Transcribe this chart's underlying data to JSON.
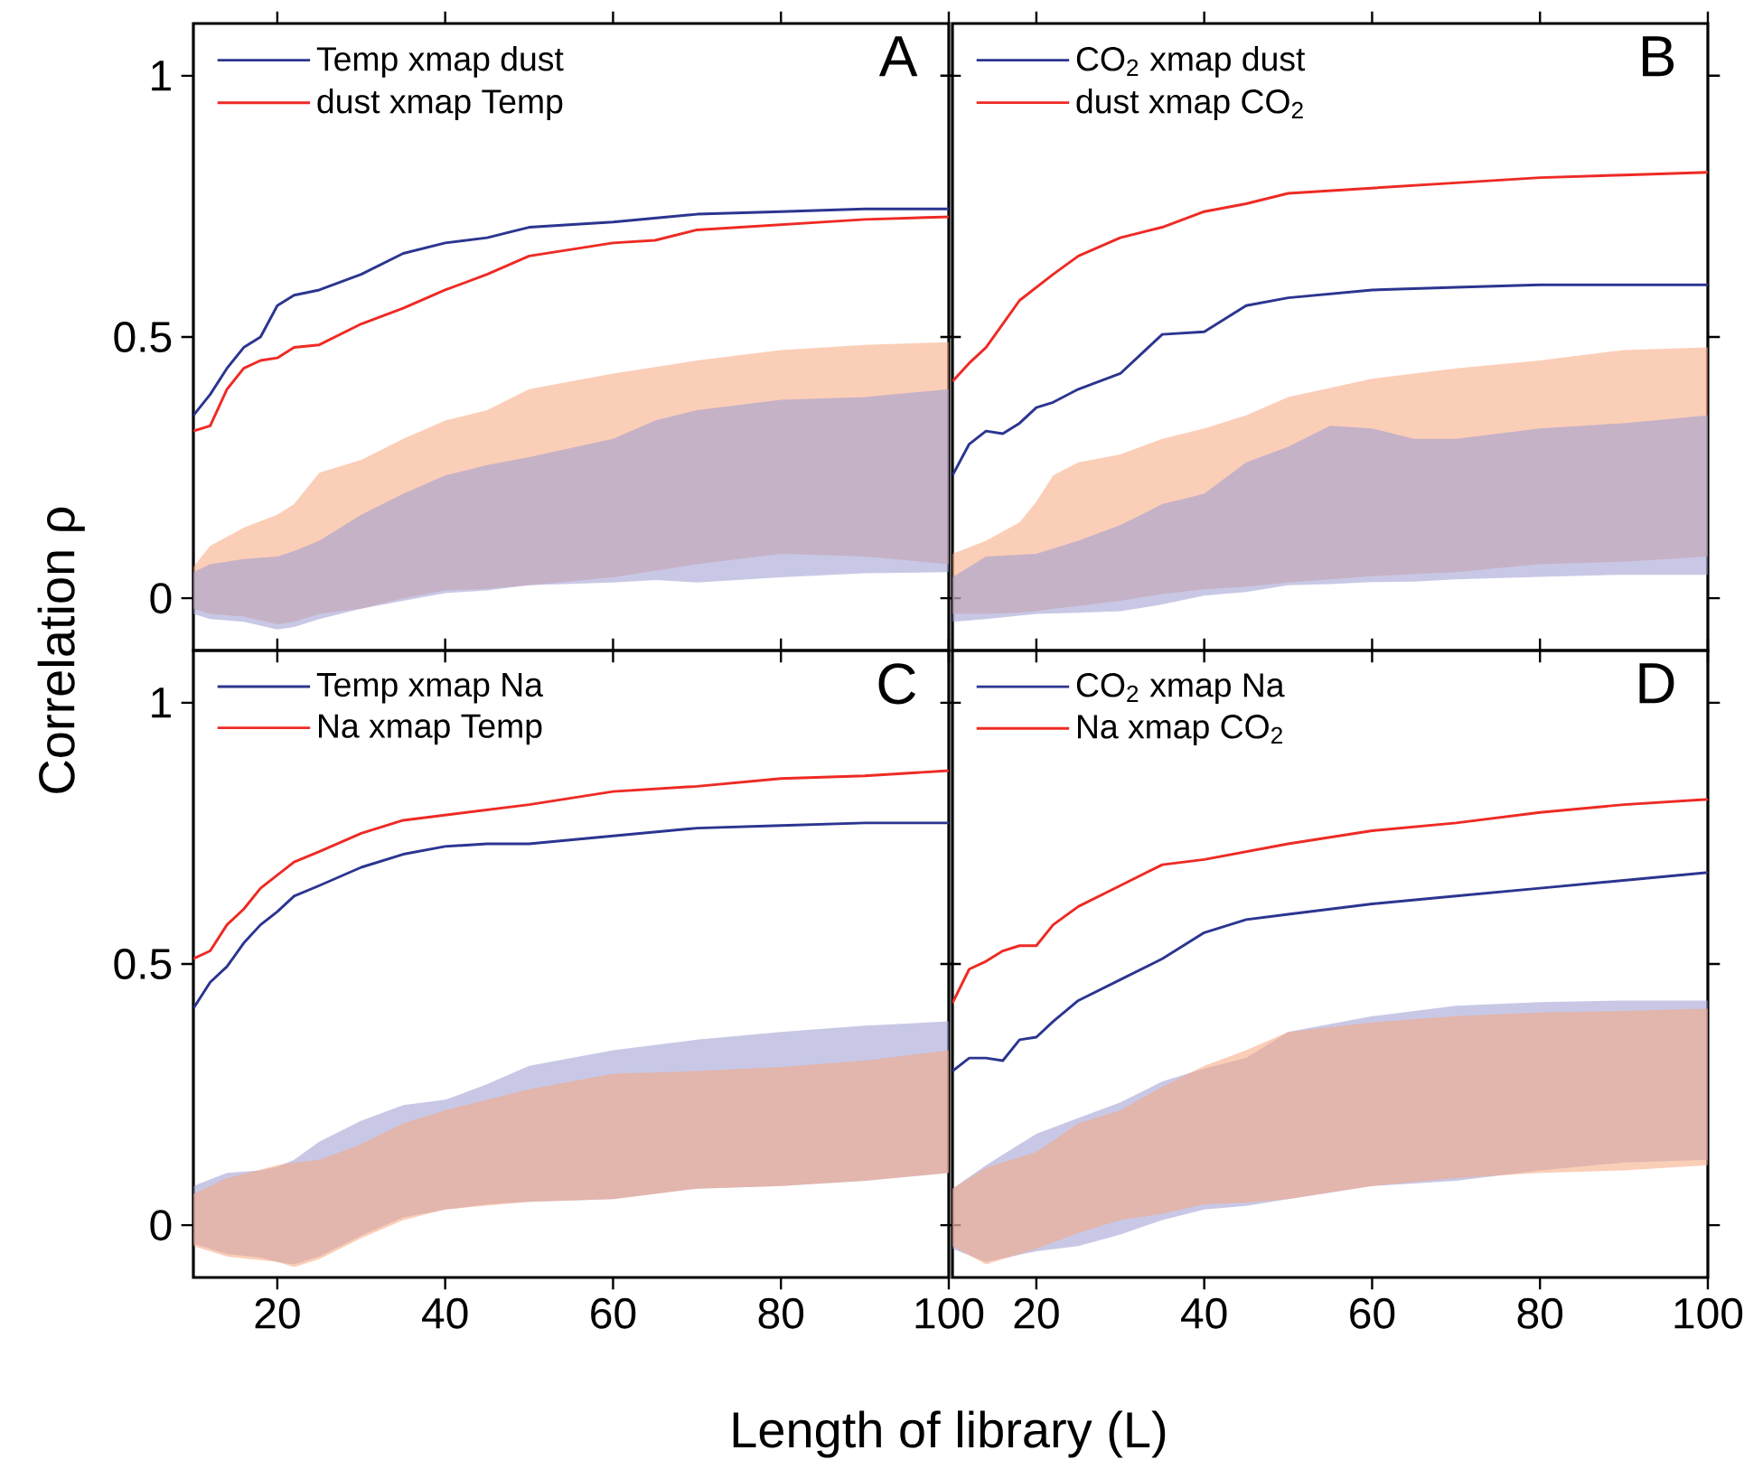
{
  "chart_data": [
    {
      "type": "line",
      "title": "A",
      "ylabel": "Correlation ρ",
      "xlim": [
        10,
        100
      ],
      "ylim": [
        -0.1,
        1.1
      ],
      "xticks": [
        20,
        40,
        60,
        80,
        100
      ],
      "yticks": [
        0,
        0.5,
        1
      ],
      "tick_labels": "y",
      "legend": "top left",
      "series": [
        {
          "color": "#f7a57e",
          "x": [
            10,
            12,
            16,
            20,
            22,
            25,
            30,
            35,
            40,
            45,
            50,
            60,
            70,
            80,
            90,
            100
          ],
          "values": [
            null,
            null,
            null,
            null,
            null,
            null,
            null,
            null,
            null,
            null,
            null,
            null,
            null,
            null,
            null,
            null
          ],
          "upper": [
            0.06,
            0.1,
            0.135,
            0.16,
            0.18,
            0.24,
            0.265,
            0.305,
            0.34,
            0.36,
            0.4,
            0.43,
            0.455,
            0.475,
            0.485,
            0.49
          ],
          "lower": [
            -0.02,
            -0.03,
            -0.035,
            -0.05,
            -0.045,
            -0.03,
            -0.02,
            0.0,
            0.015,
            0.018,
            0.025,
            0.04,
            0.065,
            0.085,
            0.08,
            0.065
          ]
        },
        {
          "color": "#9a9ad2",
          "x": [
            10,
            12,
            16,
            20,
            22,
            25,
            30,
            35,
            40,
            45,
            50,
            60,
            65,
            70,
            80,
            90,
            100
          ],
          "values": [
            null,
            null,
            null,
            null,
            null,
            null,
            null,
            null,
            null,
            null,
            null,
            null,
            null,
            null,
            null,
            null,
            null
          ],
          "upper": [
            0.05,
            0.065,
            0.075,
            0.08,
            0.09,
            0.11,
            0.16,
            0.2,
            0.235,
            0.255,
            0.27,
            0.305,
            0.34,
            0.36,
            0.38,
            0.385,
            0.4
          ],
          "lower": [
            -0.03,
            -0.04,
            -0.045,
            -0.06,
            -0.055,
            -0.04,
            -0.02,
            -0.005,
            0.01,
            0.015,
            0.025,
            0.03,
            0.035,
            0.03,
            0.04,
            0.048,
            0.05
          ]
        },
        {
          "type": "line",
          "name": "Temp xmap dust",
          "color": "#2b3590",
          "x": [
            10,
            12,
            14,
            16,
            18,
            20,
            22,
            25,
            30,
            35,
            40,
            45,
            50,
            60,
            70,
            80,
            90,
            100
          ],
          "values": [
            0.35,
            0.39,
            0.44,
            0.48,
            0.5,
            0.56,
            0.58,
            0.59,
            0.62,
            0.66,
            0.68,
            0.69,
            0.71,
            0.72,
            0.735,
            0.74,
            0.745,
            0.745
          ]
        },
        {
          "type": "line",
          "name": "dust xmap Temp",
          "color": "#ee2a24",
          "x": [
            10,
            12,
            14,
            16,
            18,
            20,
            22,
            25,
            30,
            35,
            40,
            45,
            50,
            60,
            65,
            70,
            80,
            90,
            100
          ],
          "values": [
            0.32,
            0.33,
            0.4,
            0.44,
            0.455,
            0.46,
            0.48,
            0.485,
            0.525,
            0.555,
            0.59,
            0.62,
            0.655,
            0.68,
            0.685,
            0.705,
            0.715,
            0.725,
            0.73
          ]
        }
      ]
    },
    {
      "type": "line",
      "title": "B",
      "xlim": [
        10,
        100
      ],
      "ylim": [
        -0.1,
        1.1
      ],
      "xticks": [
        20,
        40,
        60,
        80,
        100
      ],
      "yticks": [
        0,
        0.5,
        1
      ],
      "tick_labels": false,
      "legend": "top left",
      "series": [
        {
          "color": "#f7a57e",
          "x": [
            10,
            14,
            18,
            20,
            22,
            25,
            30,
            35,
            40,
            45,
            50,
            60,
            70,
            80,
            90,
            100
          ],
          "values": [
            null,
            null,
            null,
            null,
            null,
            null,
            null,
            null,
            null,
            null,
            null,
            null,
            null,
            null,
            null,
            null
          ],
          "upper": [
            0.085,
            0.11,
            0.145,
            0.185,
            0.235,
            0.26,
            0.275,
            0.305,
            0.325,
            0.35,
            0.385,
            0.42,
            0.44,
            0.455,
            0.475,
            0.48
          ],
          "lower": [
            -0.03,
            -0.03,
            -0.028,
            -0.025,
            -0.02,
            -0.015,
            -0.005,
            0.008,
            0.017,
            0.022,
            0.03,
            0.042,
            0.05,
            0.065,
            0.07,
            0.08
          ]
        },
        {
          "color": "#9a9ad2",
          "x": [
            10,
            14,
            20,
            25,
            30,
            35,
            40,
            45,
            50,
            55,
            60,
            65,
            70,
            80,
            90,
            100
          ],
          "values": [
            null,
            null,
            null,
            null,
            null,
            null,
            null,
            null,
            null,
            null,
            null,
            null,
            null,
            null,
            null,
            null
          ],
          "upper": [
            0.04,
            0.08,
            0.085,
            0.11,
            0.14,
            0.18,
            0.2,
            0.26,
            0.29,
            0.33,
            0.325,
            0.305,
            0.305,
            0.325,
            0.335,
            0.35
          ],
          "lower": [
            -0.045,
            -0.04,
            -0.03,
            -0.028,
            -0.025,
            -0.012,
            0.005,
            0.012,
            0.025,
            0.027,
            0.031,
            0.032,
            0.036,
            0.041,
            0.045,
            0.045
          ]
        },
        {
          "type": "line",
          "name": "CO$_{2}$ xmap dust",
          "color": "#2b3590",
          "x": [
            10,
            12,
            14,
            16,
            18,
            20,
            22,
            25,
            30,
            35,
            40,
            45,
            50,
            60,
            70,
            80,
            90,
            100
          ],
          "values": [
            0.235,
            0.295,
            0.32,
            0.315,
            0.335,
            0.365,
            0.375,
            0.4,
            0.43,
            0.505,
            0.51,
            0.56,
            0.575,
            0.59,
            0.595,
            0.6,
            0.6,
            0.6
          ]
        },
        {
          "type": "line",
          "name": "dust xmap CO$_{2}$",
          "color": "#ee2a24",
          "x": [
            10,
            12,
            14,
            16,
            18,
            20,
            22,
            25,
            30,
            35,
            40,
            45,
            50,
            60,
            70,
            80,
            90,
            100
          ],
          "values": [
            0.415,
            0.45,
            0.48,
            0.525,
            0.57,
            0.595,
            0.62,
            0.655,
            0.69,
            0.71,
            0.74,
            0.755,
            0.775,
            0.785,
            0.795,
            0.805,
            0.81,
            0.815
          ]
        }
      ]
    },
    {
      "type": "line",
      "title": "C",
      "xlabel": "Length of library (L)",
      "xlim": [
        10,
        100
      ],
      "ylim": [
        -0.1,
        1.1
      ],
      "xticks": [
        20,
        40,
        60,
        80,
        100
      ],
      "yticks": [
        0,
        0.5,
        1
      ],
      "legend": "top left",
      "series": [
        {
          "color": "#9a9ad2",
          "x": [
            10,
            14,
            18,
            20,
            22,
            25,
            30,
            35,
            40,
            45,
            50,
            60,
            70,
            80,
            90,
            100
          ],
          "values": [
            null,
            null,
            null,
            null,
            null,
            null,
            null,
            null,
            null,
            null,
            null,
            null,
            null,
            null,
            null,
            null
          ],
          "upper": [
            0.075,
            0.1,
            0.105,
            0.112,
            0.125,
            0.16,
            0.2,
            0.23,
            0.24,
            0.27,
            0.305,
            0.335,
            0.355,
            0.37,
            0.382,
            0.39
          ],
          "lower": [
            -0.035,
            -0.055,
            -0.062,
            -0.07,
            -0.075,
            -0.06,
            -0.02,
            0.015,
            0.03,
            0.04,
            0.045,
            0.05,
            0.07,
            0.075,
            0.085,
            0.1
          ]
        },
        {
          "color": "#f7a57e",
          "x": [
            10,
            14,
            20,
            22,
            25,
            30,
            35,
            40,
            50,
            60,
            70,
            80,
            90,
            100
          ],
          "values": [
            null,
            null,
            null,
            null,
            null,
            null,
            null,
            null,
            null,
            null,
            null,
            null,
            null,
            null
          ],
          "upper": [
            0.06,
            0.09,
            0.115,
            0.12,
            0.125,
            0.155,
            0.195,
            0.22,
            0.26,
            0.29,
            0.295,
            0.303,
            0.315,
            0.335
          ],
          "lower": [
            -0.04,
            -0.06,
            -0.07,
            -0.08,
            -0.065,
            -0.025,
            0.01,
            0.03,
            0.045,
            0.05,
            0.07,
            0.075,
            0.085,
            0.1
          ]
        },
        {
          "type": "line",
          "name": "Temp xmap Na",
          "color": "#2b3590",
          "x": [
            10,
            12,
            14,
            16,
            18,
            20,
            22,
            25,
            30,
            35,
            40,
            45,
            50,
            60,
            70,
            80,
            90,
            100
          ],
          "values": [
            0.415,
            0.465,
            0.495,
            0.54,
            0.575,
            0.6,
            0.63,
            0.65,
            0.685,
            0.71,
            0.725,
            0.73,
            0.73,
            0.745,
            0.76,
            0.765,
            0.77,
            0.77
          ]
        },
        {
          "type": "line",
          "name": "Na xmap Temp",
          "color": "#ee2a24",
          "x": [
            10,
            12,
            14,
            16,
            18,
            20,
            22,
            25,
            30,
            35,
            40,
            45,
            50,
            60,
            70,
            80,
            90,
            100
          ],
          "values": [
            0.51,
            0.525,
            0.575,
            0.605,
            0.645,
            0.67,
            0.695,
            0.715,
            0.75,
            0.775,
            0.785,
            0.795,
            0.805,
            0.83,
            0.84,
            0.855,
            0.86,
            0.87
          ]
        }
      ]
    },
    {
      "type": "line",
      "title": "D",
      "xlim": [
        10,
        100
      ],
      "ylim": [
        -0.1,
        1.1
      ],
      "xticks": [
        20,
        40,
        60,
        80,
        100
      ],
      "yticks": [
        0,
        0.5,
        1
      ],
      "tick_labels": "x",
      "legend": "top left",
      "series": [
        {
          "color": "#9a9ad2",
          "x": [
            10,
            14,
            20,
            25,
            30,
            35,
            40,
            45,
            50,
            60,
            70,
            80,
            90,
            100
          ],
          "values": [
            null,
            null,
            null,
            null,
            null,
            null,
            null,
            null,
            null,
            null,
            null,
            null,
            null,
            null
          ],
          "upper": [
            0.07,
            0.115,
            0.175,
            0.205,
            0.235,
            0.275,
            0.3,
            0.32,
            0.37,
            0.4,
            0.42,
            0.427,
            0.43,
            0.43
          ],
          "lower": [
            -0.045,
            -0.07,
            -0.05,
            -0.04,
            -0.018,
            0.01,
            0.03,
            0.037,
            0.05,
            0.075,
            0.085,
            0.105,
            0.12,
            0.125
          ]
        },
        {
          "color": "#f7a57e",
          "x": [
            10,
            14,
            20,
            25,
            30,
            35,
            40,
            45,
            50,
            60,
            70,
            80,
            90,
            100
          ],
          "values": [
            null,
            null,
            null,
            null,
            null,
            null,
            null,
            null,
            null,
            null,
            null,
            null,
            null,
            null
          ],
          "upper": [
            0.07,
            0.11,
            0.14,
            0.195,
            0.22,
            0.265,
            0.305,
            0.335,
            0.37,
            0.388,
            0.4,
            0.407,
            0.41,
            0.415
          ],
          "lower": [
            -0.04,
            -0.075,
            -0.045,
            -0.015,
            0.01,
            0.022,
            0.04,
            0.043,
            0.05,
            0.075,
            0.09,
            0.1,
            0.105,
            0.115
          ]
        },
        {
          "type": "line",
          "name": "CO$_{2}$ xmap Na",
          "color": "#2b3590",
          "x": [
            10,
            12,
            14,
            16,
            18,
            20,
            22,
            25,
            30,
            35,
            40,
            45,
            50,
            60,
            70,
            80,
            90,
            100
          ],
          "values": [
            0.295,
            0.32,
            0.32,
            0.315,
            0.355,
            0.36,
            0.39,
            0.43,
            0.47,
            0.51,
            0.56,
            0.585,
            0.595,
            0.615,
            0.63,
            0.645,
            0.66,
            0.675
          ]
        },
        {
          "type": "line",
          "name": "Na xmap CO$_{2}$",
          "color": "#ee2a24",
          "x": [
            10,
            12,
            14,
            16,
            18,
            20,
            22,
            25,
            30,
            35,
            40,
            45,
            50,
            60,
            70,
            80,
            90,
            100
          ],
          "values": [
            0.425,
            0.49,
            0.505,
            0.525,
            0.535,
            0.535,
            0.575,
            0.61,
            0.65,
            0.69,
            0.7,
            0.715,
            0.73,
            0.755,
            0.77,
            0.79,
            0.805,
            0.815
          ]
        }
      ]
    }
  ]
}
